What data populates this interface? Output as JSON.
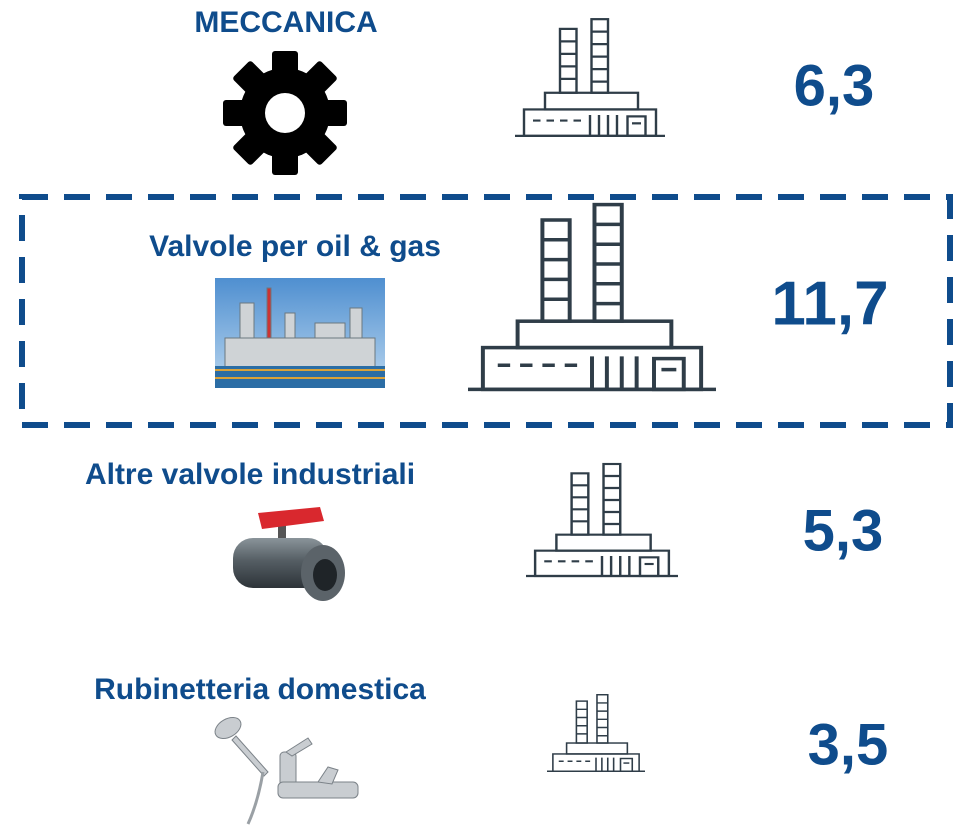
{
  "items": [
    {
      "label": "MECCANICA",
      "value": "6,3"
    },
    {
      "label": "Valvole per oil & gas",
      "value": "11,7"
    },
    {
      "label": "Altre valvole industriali",
      "value": "5,3"
    },
    {
      "label": "Rubinetteria domestica",
      "value": "3,5"
    }
  ]
}
